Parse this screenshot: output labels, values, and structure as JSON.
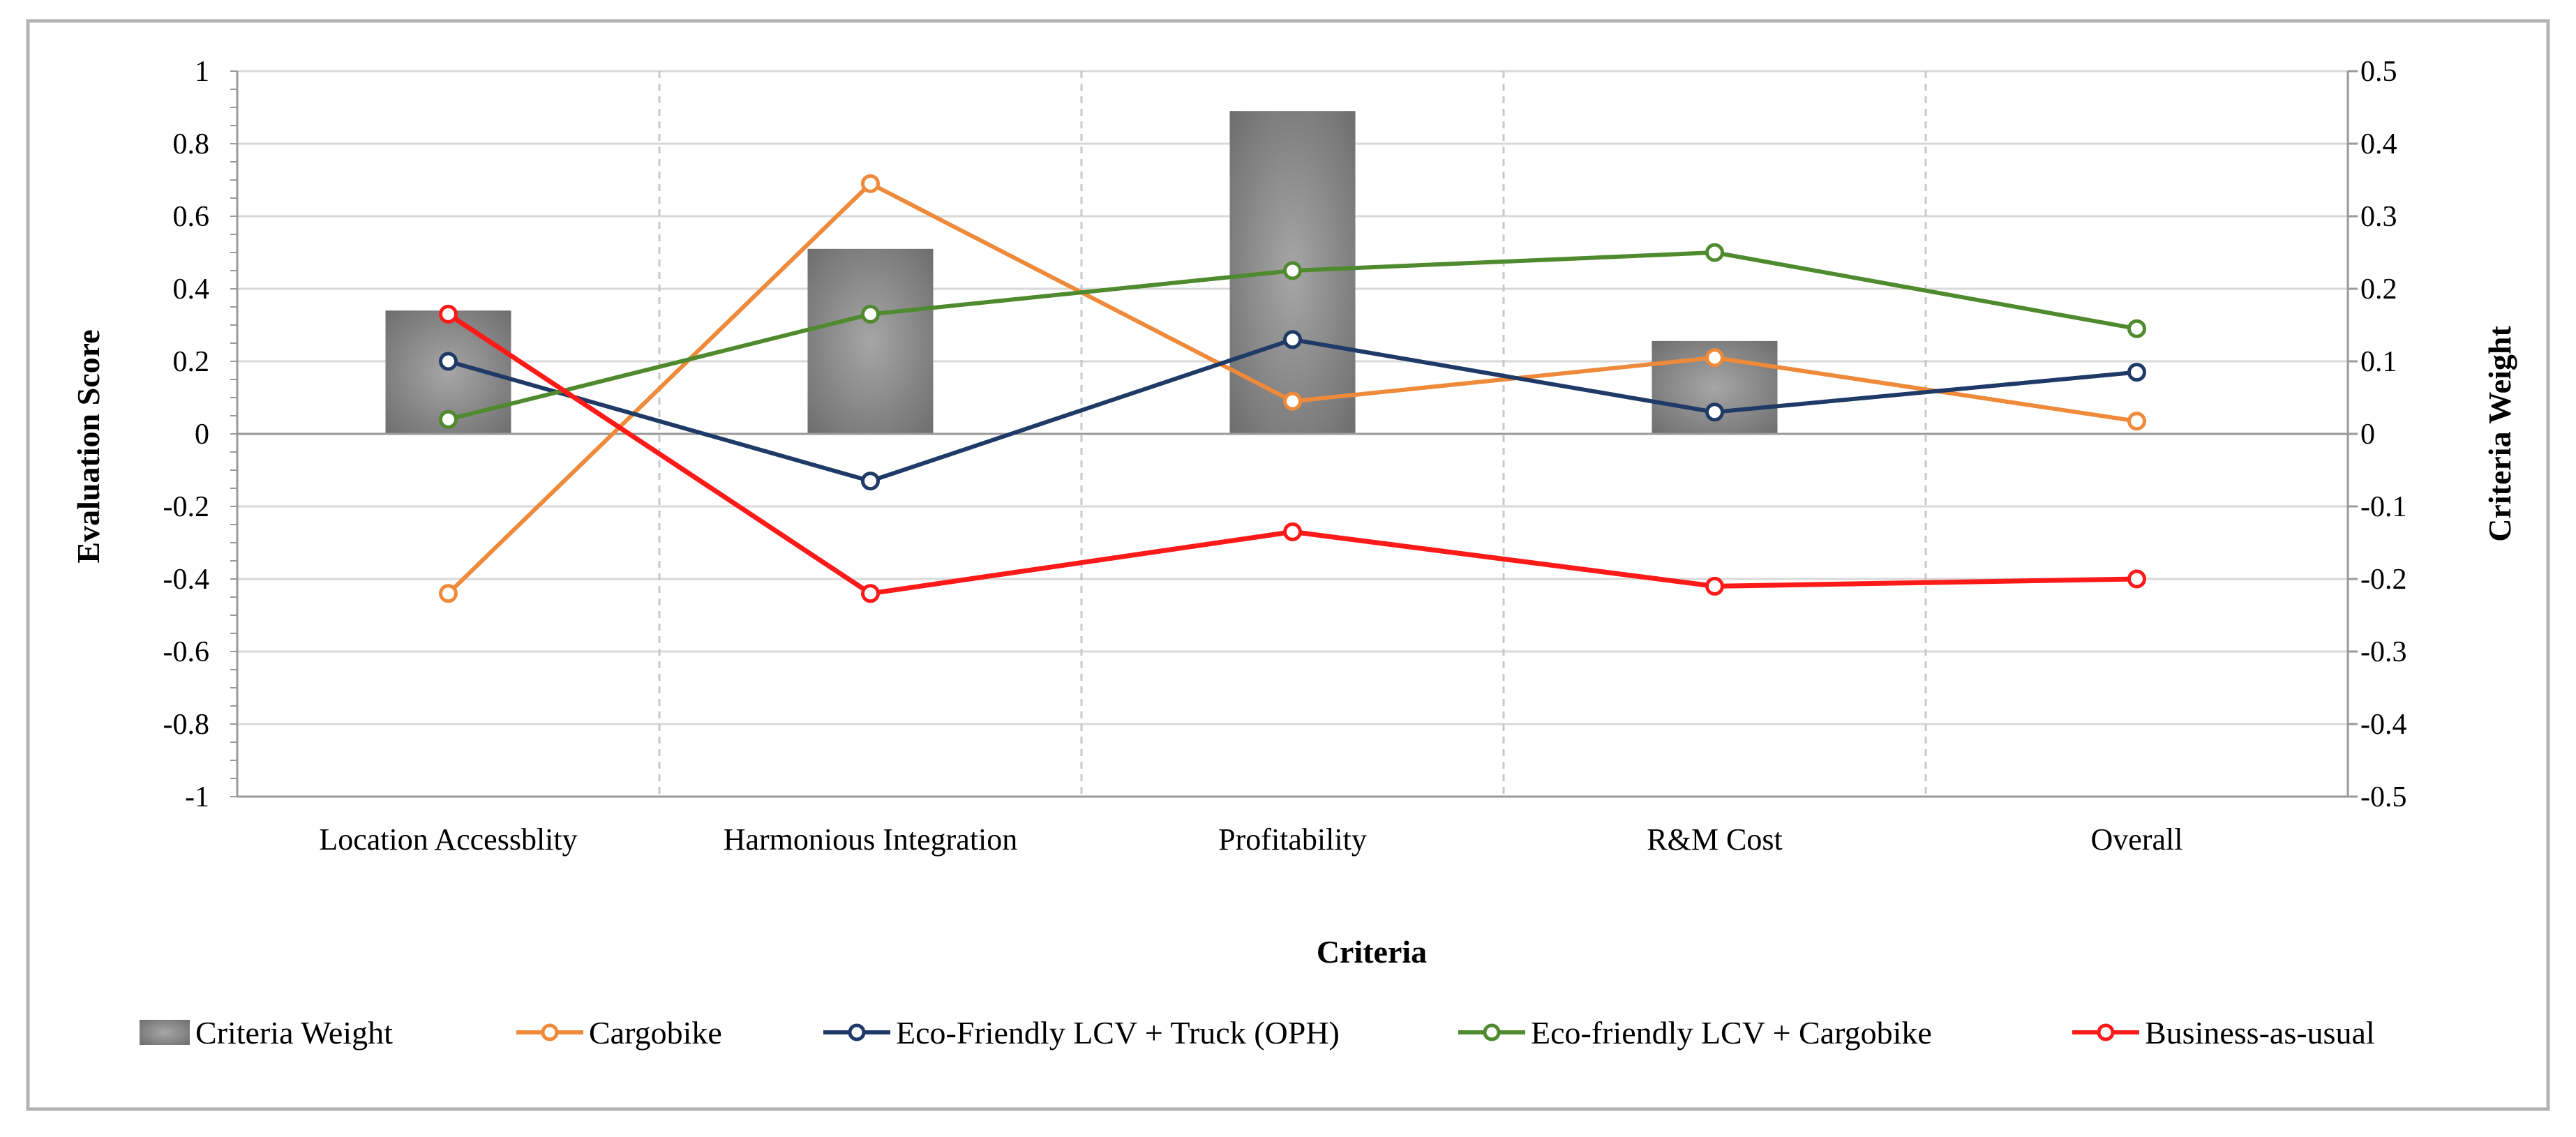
{
  "chart_data": {
    "type": "bar+line",
    "categories": [
      "Location Accessblity",
      "Harmonious Integration",
      "Profitability",
      "R&M Cost",
      "Overall"
    ],
    "xlabel": "Criteria",
    "ylabel": "Evaluation Score",
    "y2label": "Criteria Weight",
    "ylim": [
      -1,
      1
    ],
    "y2lim": [
      -0.5,
      0.5
    ],
    "yticks": [
      "1",
      "0.8",
      "0.6",
      "0.4",
      "0.2",
      "0",
      "-0.2",
      "-0.4",
      "-0.6",
      "-0.8",
      "-1"
    ],
    "y2ticks": [
      "0.5",
      "0.4",
      "0.3",
      "0.2",
      "0.1",
      "0",
      "-0.1",
      "-0.2",
      "-0.3",
      "-0.4",
      "-0.5"
    ],
    "grid": true,
    "legend_position": "bottom",
    "bars": {
      "name": "Criteria Weight",
      "axis": "right",
      "values": [
        0.17,
        0.255,
        0.445,
        0.128,
        null
      ],
      "color": "#8c8c8c"
    },
    "series": [
      {
        "name": "Cargobike",
        "color": "#ef8a3a",
        "values": [
          -0.44,
          0.69,
          0.09,
          0.21,
          0.035
        ]
      },
      {
        "name": "Eco-Friendly LCV + Truck (OPH)",
        "color": "#1f3a66",
        "values": [
          0.2,
          -0.13,
          0.26,
          0.06,
          0.17
        ]
      },
      {
        "name": "Eco-friendly LCV + Cargobike",
        "color": "#4f8a2e",
        "values": [
          0.04,
          0.33,
          0.45,
          0.5,
          0.29
        ]
      },
      {
        "name": "Business-as-usual",
        "color": "#ff1a1a",
        "values": [
          0.33,
          -0.44,
          -0.27,
          -0.42,
          -0.4
        ]
      }
    ]
  }
}
